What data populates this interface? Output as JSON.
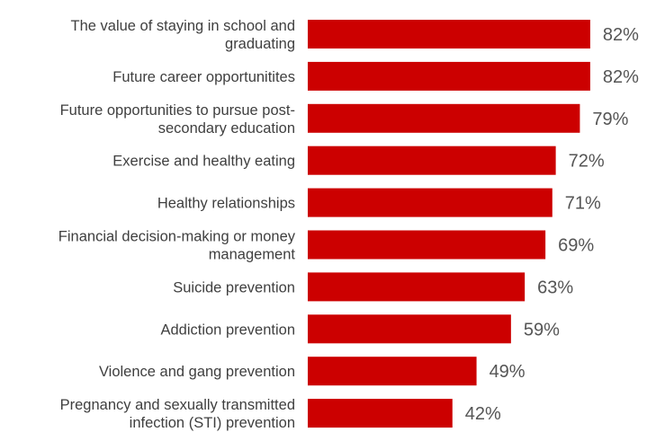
{
  "chart_data": {
    "type": "bar",
    "orientation": "horizontal",
    "title": "",
    "xlabel": "",
    "ylabel": "",
    "bar_color": "#cc0000",
    "xlim": [
      0,
      100
    ],
    "grid": false,
    "legend": "none",
    "categories": [
      "The value of staying in school and graduating",
      "Future career opportunitites",
      "Future opportunities to pursue post-secondary education",
      "Exercise and healthy eating",
      "Healthy relationships",
      "Financial decision-making or money management",
      "Suicide prevention",
      "Addiction prevention",
      "Violence and gang prevention",
      "Pregnancy and sexually transmitted infection (STI) prevention"
    ],
    "category_lines": [
      [
        "The value of staying in school and",
        "graduating"
      ],
      [
        "Future career opportunitites"
      ],
      [
        "Future opportunities to pursue post-",
        "secondary education"
      ],
      [
        "Exercise and healthy eating"
      ],
      [
        "Healthy relationships"
      ],
      [
        "Financial decision-making or money",
        "management"
      ],
      [
        "Suicide prevention"
      ],
      [
        "Addiction prevention"
      ],
      [
        "Violence and gang prevention"
      ],
      [
        "Pregnancy and sexually transmitted",
        "infection (STI) prevention"
      ]
    ],
    "values": [
      82,
      82,
      79,
      72,
      71,
      69,
      63,
      59,
      49,
      42
    ],
    "value_labels": [
      "82%",
      "82%",
      "79%",
      "72%",
      "71%",
      "69%",
      "63%",
      "59%",
      "49%",
      "42%"
    ]
  }
}
